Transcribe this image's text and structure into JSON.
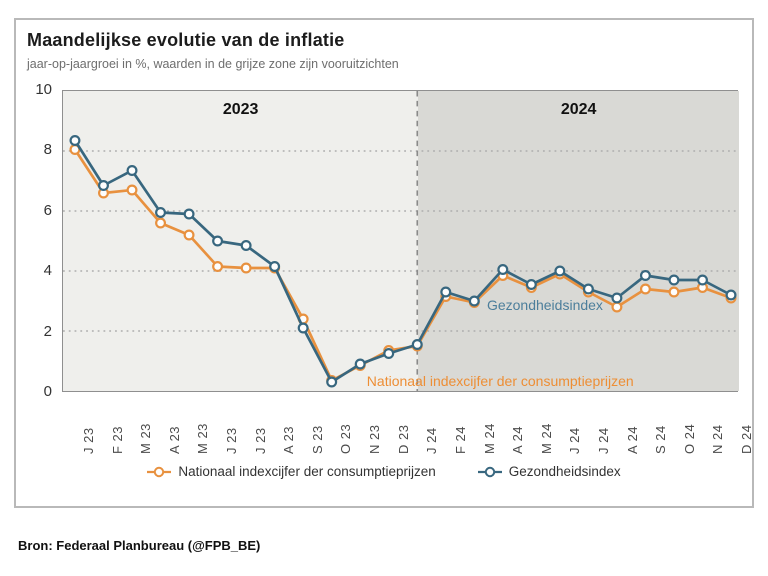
{
  "card": {
    "title": "Maandelijkse evolutie van de inflatie",
    "subtitle": "jaar-op-jaargroei in %, waarden in de grijze zone zijn vooruitzichten"
  },
  "source": "Bron: Federaal Planbureau (@FPB_BE)",
  "colors": {
    "cpi_orange": "#E8913F",
    "health_blue": "#38677F",
    "annot_blue": "#4C7E9B",
    "annot_orange": "#ED8E35",
    "zone_2023_bg": "#EFEFEC",
    "zone_2024_bg": "#D9D9D5",
    "gridline": "#ADADAD",
    "divider": "#8A8A8A",
    "marker_fill": "#FDFDFD"
  },
  "chart_data": {
    "type": "line",
    "title": "Maandelijkse evolutie van de inflatie",
    "subtitle": "jaar-op-jaargroei in %, waarden in de grijze zone zijn vooruitzichten",
    "categories": [
      "J 23",
      "F 23",
      "M 23",
      "A 23",
      "M 23",
      "J 23",
      "J 23",
      "A 23",
      "S 23",
      "O 23",
      "N 23",
      "D 23",
      "J 24",
      "F 24",
      "M 24",
      "A 24",
      "M 24",
      "J 24",
      "J 24",
      "A 24",
      "S 24",
      "O 24",
      "N 24",
      "D 24"
    ],
    "series": [
      {
        "name": "Nationaal indexcijfer der consumptieprijzen",
        "color": "#E8913F",
        "values": [
          8.05,
          6.6,
          6.7,
          5.6,
          5.2,
          4.15,
          4.1,
          4.1,
          2.4,
          0.35,
          0.85,
          1.35,
          1.5,
          3.15,
          2.95,
          3.85,
          3.45,
          3.9,
          3.3,
          2.8,
          3.4,
          3.3,
          3.45,
          3.1
        ]
      },
      {
        "name": "Gezondheidsindex",
        "color": "#38677F",
        "values": [
          8.35,
          6.85,
          7.35,
          5.95,
          5.9,
          5.0,
          4.85,
          4.15,
          2.1,
          0.3,
          0.9,
          1.25,
          1.55,
          3.3,
          3.0,
          4.05,
          3.55,
          4.0,
          3.4,
          3.1,
          3.85,
          3.7,
          3.7,
          3.2
        ]
      }
    ],
    "ylim": [
      0,
      10
    ],
    "yticks": [
      10,
      8,
      6,
      4,
      2,
      0
    ],
    "gridline_values": [
      8,
      6,
      4,
      2
    ],
    "grid": "dotted-horizontal",
    "forecast_start_index": 12,
    "zones": [
      {
        "label": "2023",
        "start": 0,
        "end": 12,
        "bg": "#EFEFEC"
      },
      {
        "label": "2024",
        "start": 12,
        "end": 24,
        "bg": "#D9D9D5"
      }
    ],
    "annotations": [
      {
        "label": "Gezondheidsindex",
        "color": "#4C7E9B",
        "month_index": 14.4,
        "value": 2.88
      },
      {
        "label": "Nationaal indexcijfer der consumptieprijzen",
        "color": "#ED8E35",
        "month_index": 10.2,
        "value": 0.36
      }
    ],
    "legend_position": "bottom"
  },
  "legend": {
    "items": [
      {
        "label": "Nationaal indexcijfer der consumptieprijzen",
        "color": "#E8913F"
      },
      {
        "label": "Gezondheidsindex",
        "color": "#38677F"
      }
    ]
  }
}
